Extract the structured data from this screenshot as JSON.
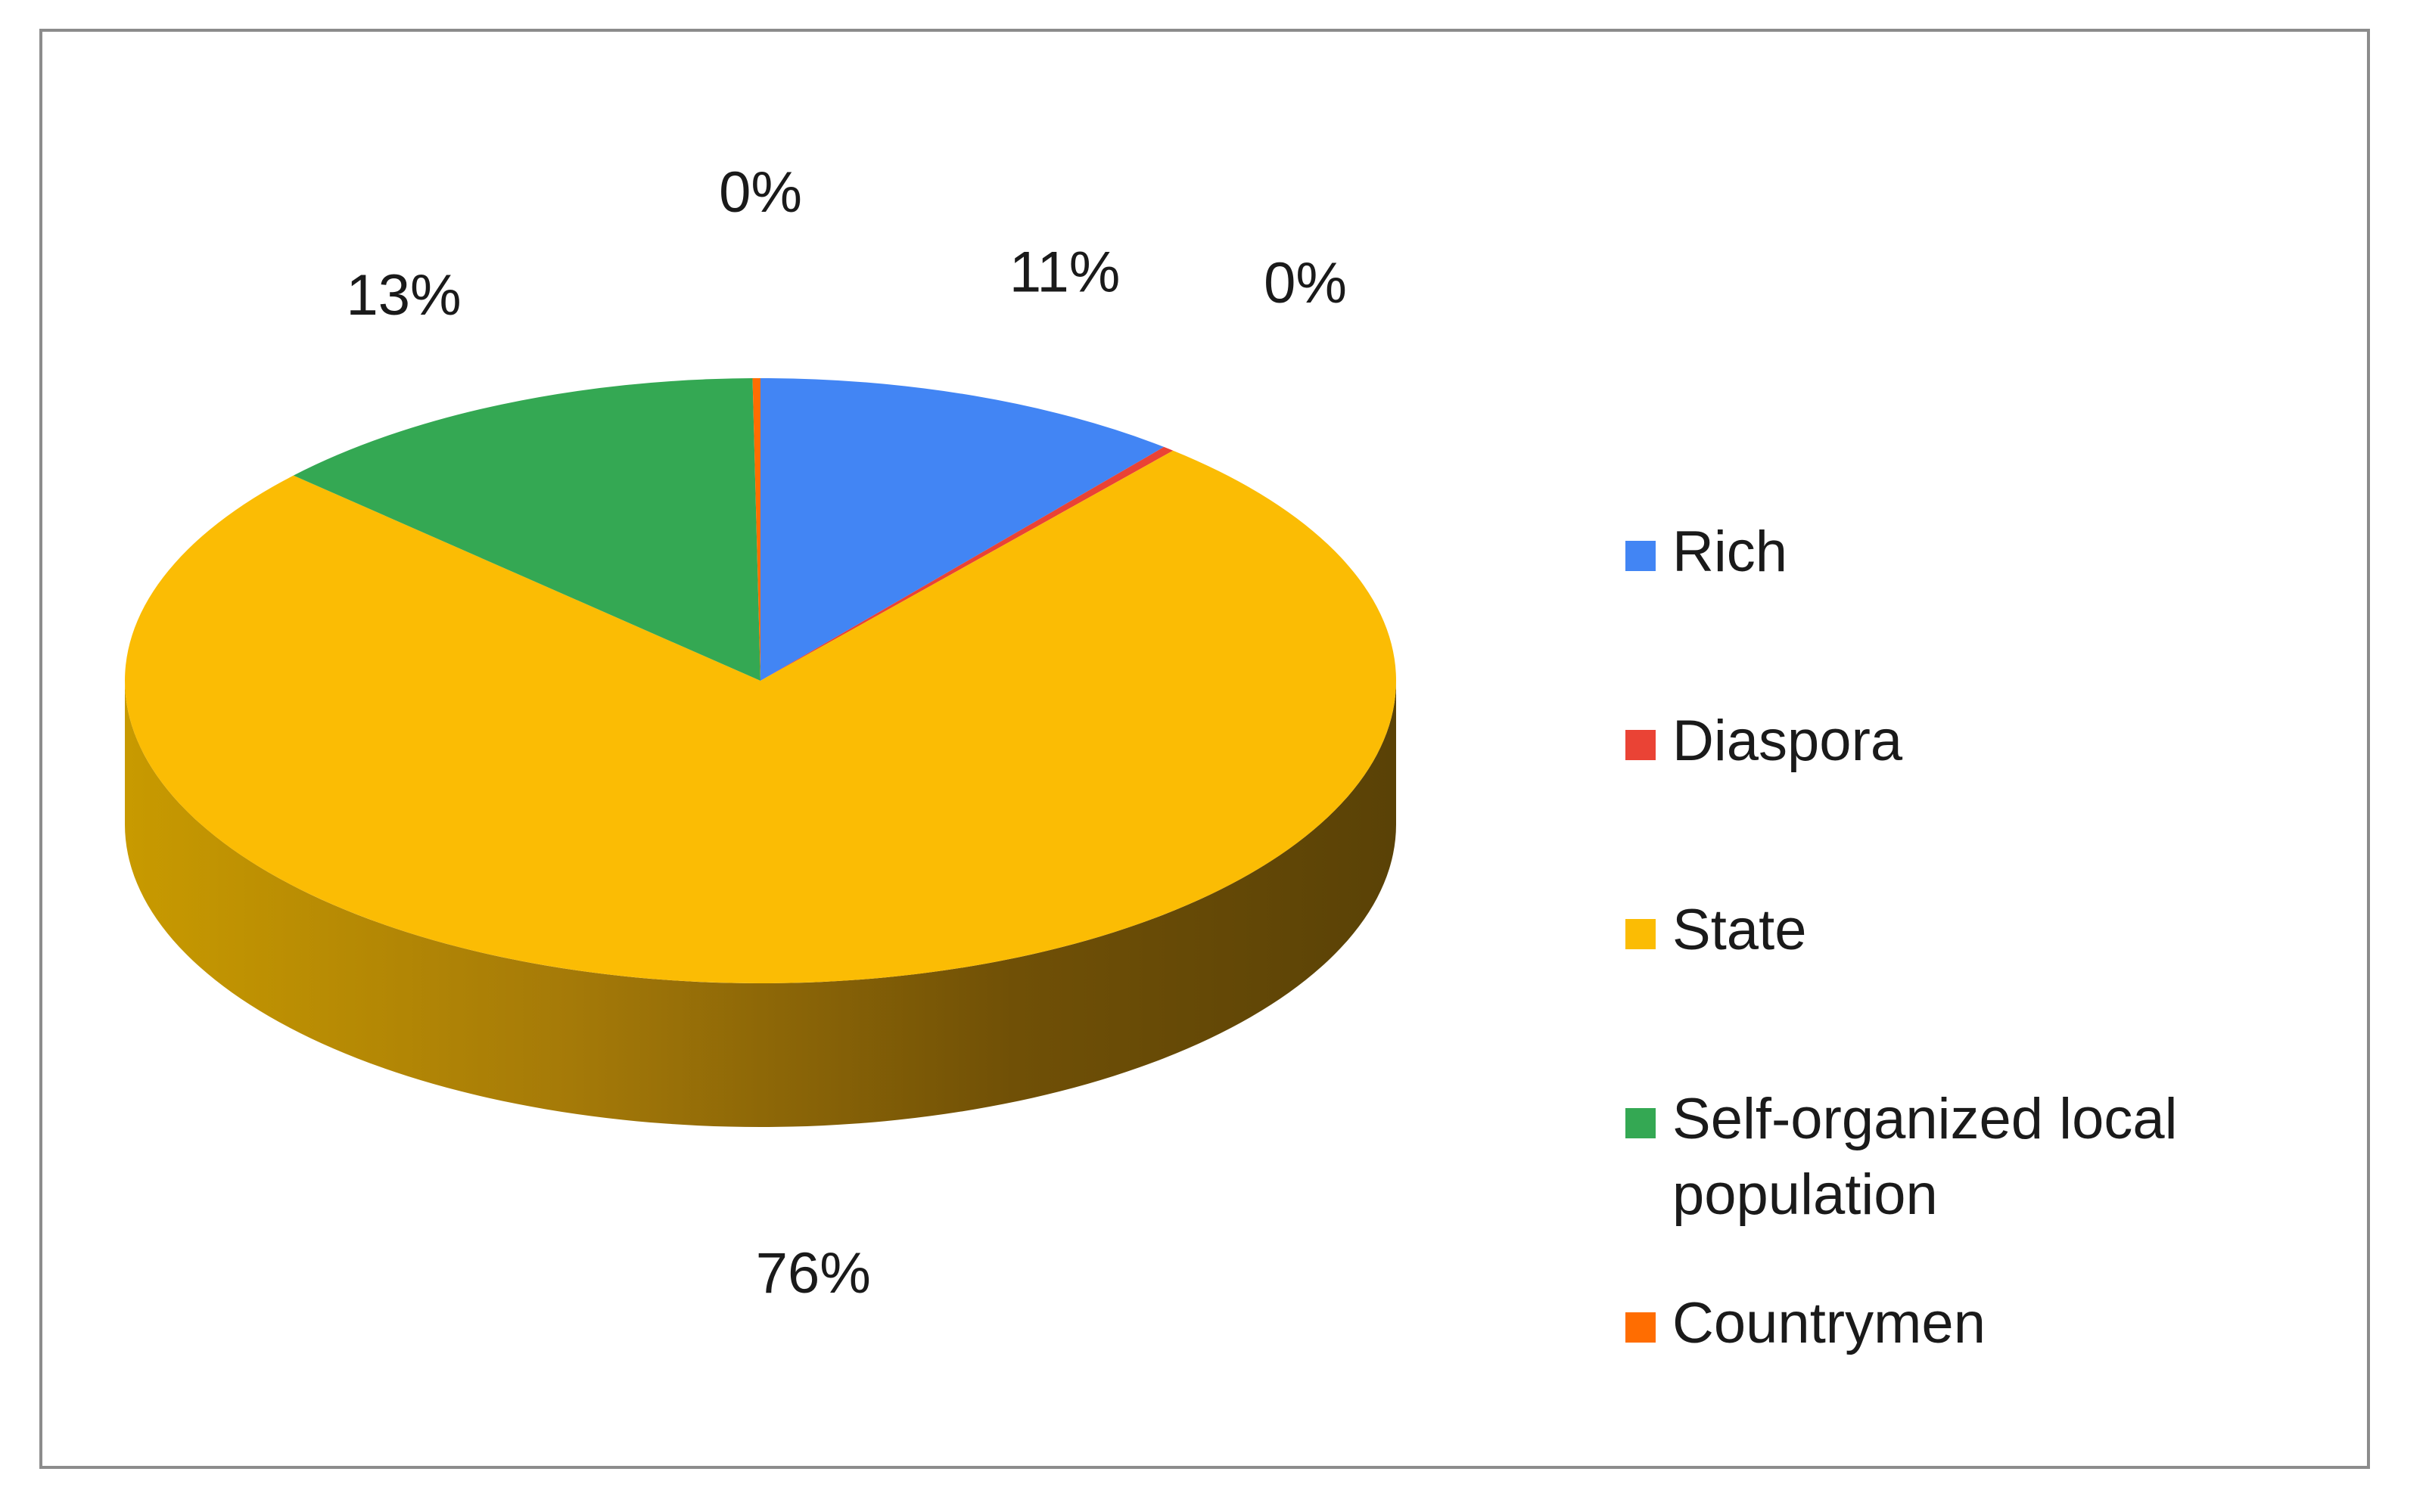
{
  "chart_data": {
    "type": "pie",
    "title": "",
    "categories": [
      "Rich",
      "Diaspora",
      "State",
      "Self-organized local population",
      "Countrymen"
    ],
    "values": [
      11,
      0.3,
      76,
      13,
      0.2
    ],
    "data_labels": [
      "11%",
      "0%",
      "76%",
      "13%",
      "0%"
    ],
    "colors": [
      "#4285f4",
      "#ea4335",
      "#fbbc04",
      "#34a853",
      "#ff6d01"
    ],
    "side_colors": [
      "#2a5bb8",
      "#a32a22",
      "#b38600",
      "#1f7a38",
      "#b84c00"
    ],
    "legend": {
      "position": "right",
      "entries": [
        {
          "lines": [
            "Rich"
          ]
        },
        {
          "lines": [
            "Diaspora"
          ]
        },
        {
          "lines": [
            "State"
          ]
        },
        {
          "lines": [
            "Self-organized local",
            "population"
          ]
        },
        {
          "lines": [
            "Countrymen"
          ]
        }
      ]
    },
    "style": "3d-pie"
  }
}
